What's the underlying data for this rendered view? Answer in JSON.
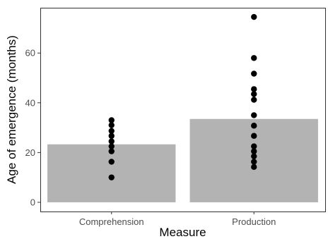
{
  "chart_data": {
    "type": "bar",
    "categories": [
      "Comprehension",
      "Production"
    ],
    "values": [
      23.3,
      33.5
    ],
    "points": [
      [
        33,
        31,
        28.7,
        26.7,
        24.5,
        22.5,
        20.5,
        16.3,
        10
      ],
      [
        74.5,
        58,
        51.7,
        45.5,
        43.5,
        41.2,
        35,
        30.8,
        26.7,
        22.5,
        20.5,
        18.5,
        16.3,
        14.2
      ]
    ],
    "xlabel": "Measure",
    "ylabel": "Age of emergence (months)",
    "ylim": [
      -3.7,
      78.2
    ],
    "yticks": [
      0,
      20,
      40,
      60
    ],
    "grid": false,
    "legend": "none",
    "colors": {
      "bar": "#b3b3b3",
      "point": "#000000",
      "border": "#333333",
      "tick": "#333333",
      "tick_label": "#4d4d4d"
    }
  }
}
